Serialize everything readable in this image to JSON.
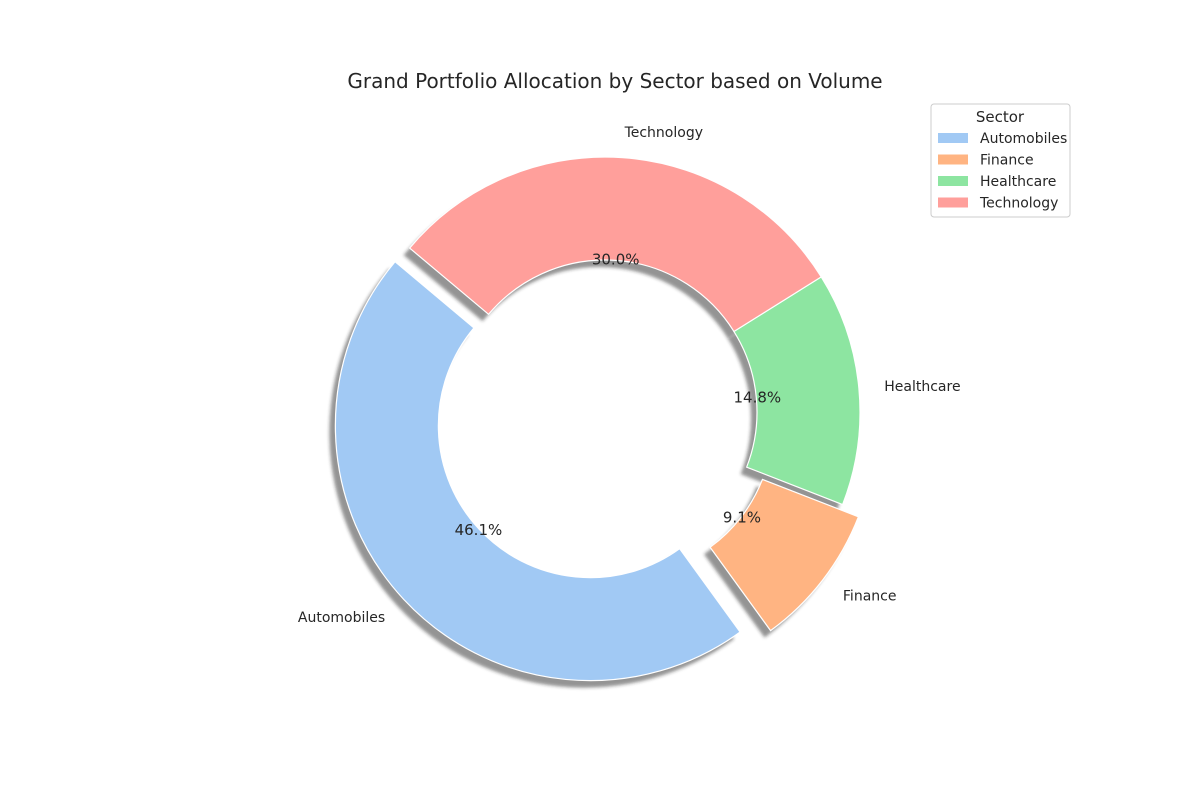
{
  "chart_data": {
    "type": "pie",
    "style": "donut",
    "title": "Grand Portfolio Allocation by Sector based on Volume",
    "categories": [
      "Automobiles",
      "Finance",
      "Healthcare",
      "Technology"
    ],
    "values": [
      46.1,
      9.1,
      14.8,
      30.0
    ],
    "percent_labels": [
      "46.1%",
      "9.1%",
      "14.8%",
      "30.0%"
    ],
    "colors": [
      "#a1c9f4",
      "#ffb482",
      "#8de5a1",
      "#ff9f9b"
    ],
    "exploded": [
      true,
      true,
      false,
      false
    ],
    "shadow": true,
    "start_angle_deg": 140,
    "legend": {
      "title": "Sector",
      "placement": "top-right",
      "entries": [
        "Automobiles",
        "Finance",
        "Healthcare",
        "Technology"
      ]
    }
  }
}
